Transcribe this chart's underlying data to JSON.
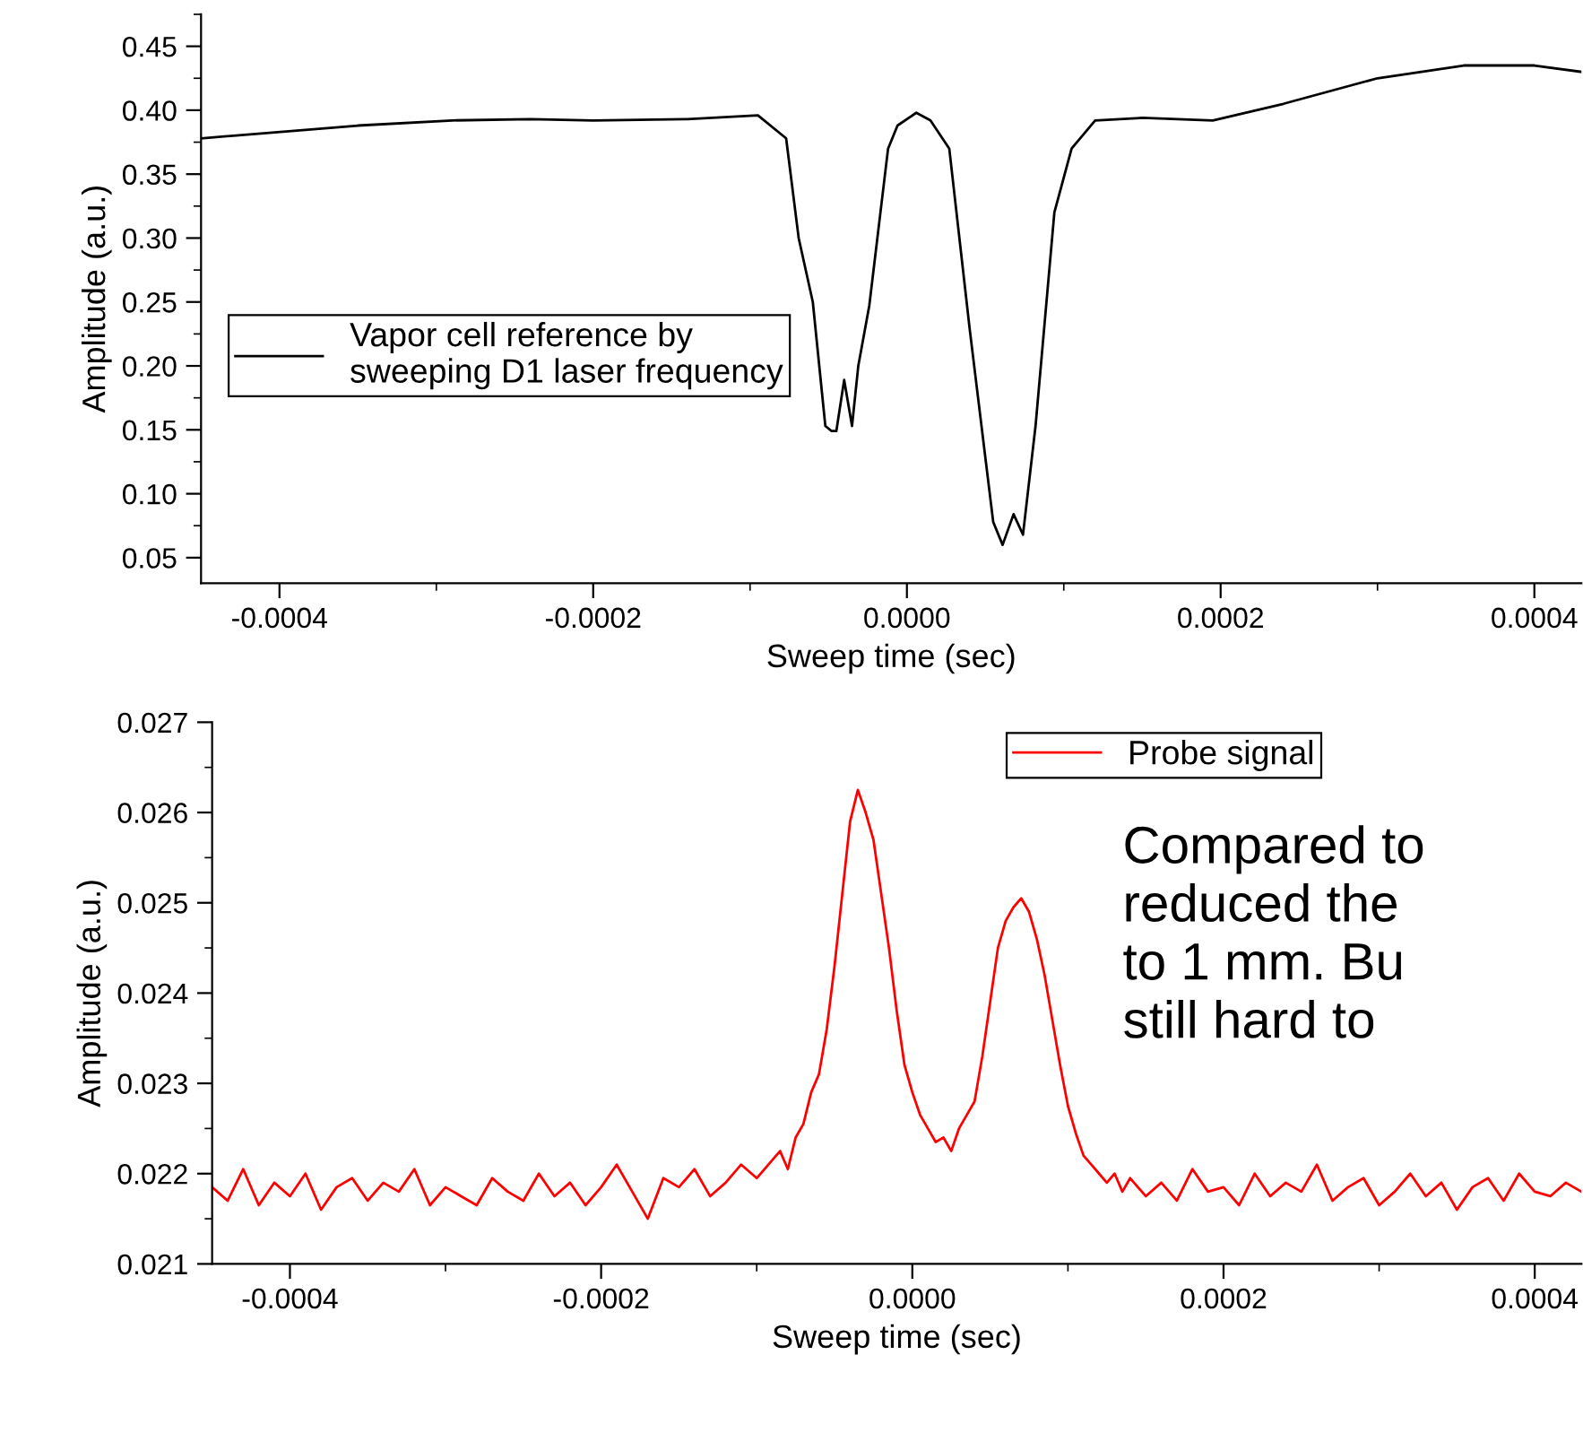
{
  "chart_data": [
    {
      "type": "line",
      "xlabel": "Sweep time (sec)",
      "ylabel": "Amplitude (a.u.)",
      "xlim": [
        -0.00045,
        0.00043
      ],
      "ylim": [
        0.03,
        0.475
      ],
      "xticks": [
        {
          "value": -0.0004,
          "label": "-0.0004"
        },
        {
          "value": -0.0002,
          "label": "-0.0002"
        },
        {
          "value": 0,
          "label": "0.0000"
        },
        {
          "value": 0.0002,
          "label": "0.0002"
        },
        {
          "value": 0.0004,
          "label": "0.0004"
        }
      ],
      "yticks": [
        {
          "value": 0.05,
          "label": "0.05"
        },
        {
          "value": 0.1,
          "label": "0.10"
        },
        {
          "value": 0.15,
          "label": "0.15"
        },
        {
          "value": 0.2,
          "label": "0.20"
        },
        {
          "value": 0.25,
          "label": "0.25"
        },
        {
          "value": 0.3,
          "label": "0.30"
        },
        {
          "value": 0.35,
          "label": "0.35"
        },
        {
          "value": 0.4,
          "label": "0.40"
        },
        {
          "value": 0.45,
          "label": "0.45"
        }
      ],
      "legend": "left",
      "x": [
        -0.00045,
        -0.00041,
        -0.00035,
        -0.00029,
        -0.00024,
        -0.0002,
        -0.00014,
        -9.5e-05,
        -7.7e-05,
        -6.9e-05,
        -6e-05,
        -5.2e-05,
        -4.8e-05,
        -4.5e-05,
        -4e-05,
        -3.5e-05,
        -3.1e-05,
        -2.4e-05,
        -1.2e-05,
        -6e-06,
        6e-06,
        1.5e-05,
        2.7e-05,
        4e-05,
        5.5e-05,
        6.1e-05,
        6.8e-05,
        7.4e-05,
        8.2e-05,
        9.4e-05,
        0.000105,
        0.00012,
        0.00015,
        0.000195,
        0.00024,
        0.0003,
        0.000355,
        0.0004,
        0.00043
      ],
      "series": [
        {
          "name": "Vapor cell reference by\nsweeping D1 laser frequency",
          "color": "#000000",
          "values": [
            0.378,
            0.382,
            0.388,
            0.392,
            0.393,
            0.392,
            0.393,
            0.396,
            0.378,
            0.3,
            0.25,
            0.153,
            0.149,
            0.149,
            0.189,
            0.153,
            0.2,
            0.247,
            0.37,
            0.388,
            0.398,
            0.392,
            0.37,
            0.229,
            0.078,
            0.06,
            0.084,
            0.068,
            0.153,
            0.32,
            0.37,
            0.392,
            0.394,
            0.392,
            0.405,
            0.425,
            0.435,
            0.435,
            0.43
          ]
        }
      ]
    },
    {
      "type": "line",
      "xlabel": "Sweep time (sec)",
      "ylabel": "Amplitude (a.u.)",
      "xlim": [
        -0.00045,
        0.00043
      ],
      "ylim": [
        0.021,
        0.027
      ],
      "xticks": [
        {
          "value": -0.0004,
          "label": "-0.0004"
        },
        {
          "value": -0.0002,
          "label": "-0.0002"
        },
        {
          "value": 0,
          "label": "0.0000"
        },
        {
          "value": 0.0002,
          "label": "0.0002"
        },
        {
          "value": 0.0004,
          "label": "0.0004"
        }
      ],
      "yticks": [
        0.021,
        0.022,
        0.023,
        0.024,
        0.025,
        0.026,
        0.027
      ],
      "legend": "top right",
      "annotations": [
        "Compared to\nreduced the\nto 1 mm. Bu\nstill hard to"
      ],
      "x": [
        -0.00045,
        -0.00044,
        -0.00043,
        -0.00042,
        -0.00041,
        -0.0004,
        -0.00039,
        -0.00038,
        -0.00037,
        -0.00036,
        -0.00035,
        -0.00034,
        -0.00033,
        -0.00032,
        -0.00031,
        -0.0003,
        -0.00029,
        -0.00028,
        -0.00027,
        -0.00026,
        -0.00025,
        -0.00024,
        -0.00023,
        -0.00022,
        -0.00021,
        -0.0002,
        -0.00019,
        -0.00018,
        -0.00017,
        -0.00016,
        -0.00015,
        -0.00014,
        -0.00013,
        -0.00012,
        -0.00011,
        -0.0001,
        -9e-05,
        -8.5e-05,
        -8e-05,
        -7.5e-05,
        -7e-05,
        -6.5e-05,
        -6e-05,
        -5.5e-05,
        -5e-05,
        -4.5e-05,
        -4e-05,
        -3.5e-05,
        -3e-05,
        -2.5e-05,
        -2e-05,
        -1.5e-05,
        -1e-05,
        -5e-06,
        0,
        5e-06,
        1e-05,
        1.5e-05,
        2e-05,
        2.5e-05,
        3e-05,
        3.5e-05,
        4e-05,
        4.5e-05,
        5e-05,
        5.5e-05,
        6e-05,
        6.5e-05,
        7e-05,
        7.5e-05,
        8e-05,
        8.5e-05,
        9e-05,
        9.5e-05,
        0.0001,
        0.000105,
        0.00011,
        0.000115,
        0.00012,
        0.000125,
        0.00013,
        0.000135,
        0.00014,
        0.00015,
        0.00016,
        0.00017,
        0.00018,
        0.00019,
        0.0002,
        0.00021,
        0.00022,
        0.00023,
        0.00024,
        0.00025,
        0.00026,
        0.00027,
        0.00028,
        0.00029,
        0.0003,
        0.00031,
        0.00032,
        0.00033,
        0.00034,
        0.00035,
        0.00036,
        0.00037,
        0.00038,
        0.00039,
        0.0004,
        0.00041,
        0.00042,
        0.00043
      ],
      "series": [
        {
          "name": "Probe signal",
          "color": "#ff0000",
          "values": [
            0.02185,
            0.0217,
            0.02205,
            0.02165,
            0.0219,
            0.02175,
            0.022,
            0.0216,
            0.02185,
            0.02195,
            0.0217,
            0.0219,
            0.0218,
            0.02205,
            0.02165,
            0.02185,
            0.02175,
            0.02165,
            0.02195,
            0.0218,
            0.0217,
            0.022,
            0.02175,
            0.0219,
            0.02165,
            0.02185,
            0.0221,
            0.0218,
            0.0215,
            0.02195,
            0.02185,
            0.02205,
            0.02175,
            0.0219,
            0.0221,
            0.02195,
            0.02215,
            0.02225,
            0.02205,
            0.0224,
            0.02255,
            0.0229,
            0.0231,
            0.0236,
            0.0243,
            0.0251,
            0.0259,
            0.02625,
            0.026,
            0.0257,
            0.0251,
            0.0245,
            0.0238,
            0.0232,
            0.0229,
            0.02265,
            0.0225,
            0.02235,
            0.0224,
            0.02225,
            0.0225,
            0.02265,
            0.0228,
            0.0233,
            0.0239,
            0.0245,
            0.0248,
            0.02495,
            0.02505,
            0.0249,
            0.0246,
            0.0242,
            0.0237,
            0.0232,
            0.02275,
            0.02245,
            0.0222,
            0.0221,
            0.022,
            0.0219,
            0.022,
            0.0218,
            0.02195,
            0.02175,
            0.0219,
            0.0217,
            0.02205,
            0.0218,
            0.02185,
            0.02165,
            0.022,
            0.02175,
            0.0219,
            0.0218,
            0.0221,
            0.0217,
            0.02185,
            0.02195,
            0.02165,
            0.0218,
            0.022,
            0.02175,
            0.0219,
            0.0216,
            0.02185,
            0.02195,
            0.0217,
            0.022,
            0.0218,
            0.02175,
            0.0219,
            0.0218
          ]
        }
      ]
    }
  ]
}
